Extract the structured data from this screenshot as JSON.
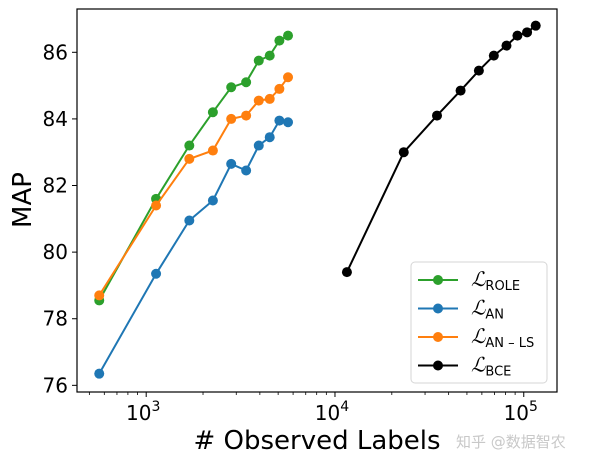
{
  "chart_data": {
    "type": "line",
    "title": "",
    "xlabel": "# Observed Labels",
    "ylabel": "MAP",
    "xscale": "log",
    "xlim": [
      430,
      150000
    ],
    "ylim": [
      75.8,
      87.3
    ],
    "x_ticks": [
      {
        "value": 1000,
        "base": "10",
        "exp": "3"
      },
      {
        "value": 10000,
        "base": "10",
        "exp": "4"
      },
      {
        "value": 100000,
        "base": "10",
        "exp": "5"
      }
    ],
    "y_ticks": [
      76,
      78,
      80,
      82,
      84,
      86
    ],
    "grid": false,
    "legend_position": "lower-right",
    "series": [
      {
        "name": "ROLE",
        "legend_symbol": "ℒ",
        "color": "#2ca02c",
        "x": [
          564,
          1128,
          1692,
          2256,
          2820,
          3384,
          3948,
          4512,
          5076,
          5640
        ],
        "y": [
          78.55,
          81.6,
          83.2,
          84.2,
          84.95,
          85.1,
          85.75,
          85.9,
          86.35,
          86.5
        ]
      },
      {
        "name": "AN",
        "legend_symbol": "ℒ",
        "color": "#1f77b4",
        "x": [
          564,
          1128,
          1692,
          2256,
          2820,
          3384,
          3948,
          4512,
          5076,
          5640
        ],
        "y": [
          76.35,
          79.35,
          80.95,
          81.55,
          82.65,
          82.45,
          83.2,
          83.45,
          83.95,
          83.9
        ]
      },
      {
        "name": "AN – LS",
        "legend_symbol": "ℒ",
        "color": "#ff7f0e",
        "x": [
          564,
          1128,
          1692,
          2256,
          2820,
          3384,
          3948,
          4512,
          5076,
          5640
        ],
        "y": [
          78.7,
          81.4,
          82.8,
          83.05,
          84.0,
          84.1,
          84.55,
          84.6,
          84.9,
          85.25
        ]
      },
      {
        "name": "BCE",
        "legend_symbol": "ℒ",
        "color": "#000000",
        "x": [
          11570,
          23140,
          34710,
          46280,
          57850,
          69420,
          80990,
          92560,
          104130,
          115700
        ],
        "y": [
          79.4,
          83.0,
          84.1,
          84.85,
          85.45,
          85.9,
          86.2,
          86.5,
          86.6,
          86.8
        ]
      }
    ]
  },
  "watermark": "知乎 @数据智农"
}
